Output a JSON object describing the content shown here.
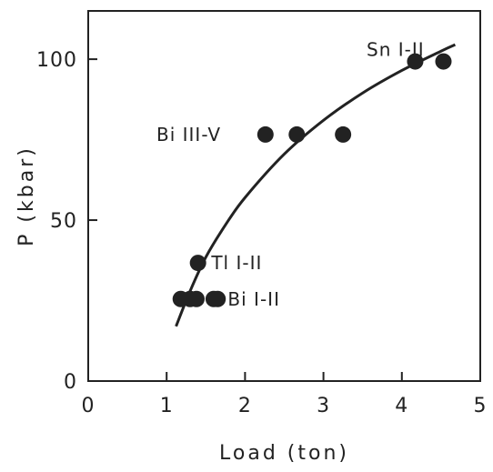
{
  "chart_data": {
    "type": "scatter",
    "xlabel": "Load (ton)",
    "ylabel": "P (kbar)",
    "xlim": [
      0,
      5
    ],
    "ylim": [
      0,
      115
    ],
    "x_ticks": [
      0,
      1,
      2,
      3,
      4,
      5
    ],
    "y_ticks": [
      0,
      50,
      100
    ],
    "x_tick_labels": [
      "0",
      "1",
      "2",
      "3",
      "4",
      "5"
    ],
    "y_tick_labels": [
      "0",
      "50",
      "100"
    ],
    "grid": false,
    "colors": {
      "marker": "#222222",
      "curve": "#222222",
      "axis": "#222222"
    },
    "points": [
      {
        "x": 1.18,
        "y": 25.5
      },
      {
        "x": 1.3,
        "y": 25.5
      },
      {
        "x": 1.38,
        "y": 25.5
      },
      {
        "x": 1.6,
        "y": 25.5
      },
      {
        "x": 1.65,
        "y": 25.5
      },
      {
        "x": 1.4,
        "y": 36.7
      },
      {
        "x": 2.26,
        "y": 76.6
      },
      {
        "x": 2.66,
        "y": 76.6
      },
      {
        "x": 3.25,
        "y": 76.6
      },
      {
        "x": 4.17,
        "y": 99.3
      },
      {
        "x": 4.53,
        "y": 99.3
      }
    ],
    "curve": {
      "x": [
        1.12,
        1.3,
        1.5,
        1.75,
        2.0,
        2.5,
        3.0,
        3.5,
        4.0,
        4.5,
        4.68
      ],
      "y": [
        17,
        28,
        38.5,
        48.5,
        57,
        70.5,
        81,
        89.5,
        96.5,
        102.5,
        104.5
      ]
    },
    "annotations": [
      {
        "text": "Sn I-II",
        "x": 3.55,
        "y": 103
      },
      {
        "text": "Bi III-V",
        "x": 0.87,
        "y": 76.6
      },
      {
        "text": "Tl I-II",
        "x": 1.57,
        "y": 36.7
      },
      {
        "text": "Bi I-II",
        "x": 1.78,
        "y": 25.5
      }
    ]
  }
}
